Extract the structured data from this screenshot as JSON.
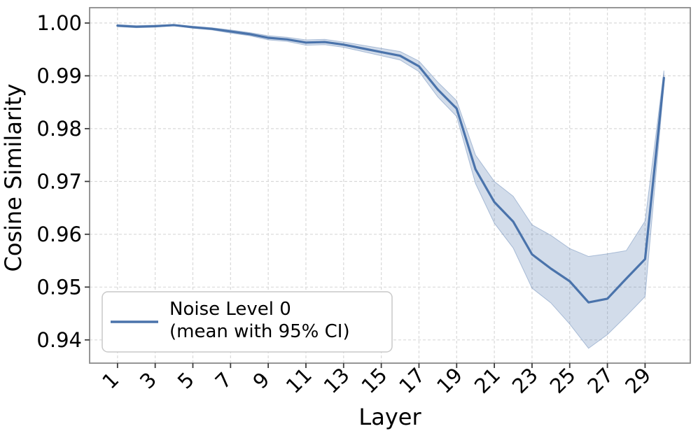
{
  "figure": {
    "background": "#ffffff"
  },
  "chart_data": {
    "type": "line",
    "title": "",
    "xlabel": "Layer",
    "ylabel": "Cosine Similarity",
    "x": [
      1,
      2,
      3,
      4,
      5,
      6,
      7,
      8,
      9,
      10,
      11,
      12,
      13,
      14,
      15,
      16,
      17,
      18,
      19,
      20,
      21,
      22,
      23,
      24,
      25,
      26,
      27,
      28,
      29,
      30
    ],
    "series": [
      {
        "name": "Noise Level 0 (mean with 95% CI)",
        "legend_lines": [
          "Noise Level 0",
          "(mean with 95% CI)"
        ],
        "mean": [
          0.9995,
          0.9993,
          0.9994,
          0.9996,
          0.9992,
          0.9989,
          0.9984,
          0.9979,
          0.9972,
          0.9969,
          0.9963,
          0.9964,
          0.9959,
          0.9952,
          0.9945,
          0.9938,
          0.9918,
          0.9874,
          0.9838,
          0.9723,
          0.9661,
          0.9624,
          0.9562,
          0.9535,
          0.9511,
          0.9471,
          0.9478,
          0.9516,
          0.9553,
          0.9896
        ],
        "ci_upper": [
          0.9997,
          0.9995,
          0.9996,
          0.9997,
          0.9994,
          0.9991,
          0.9987,
          0.9982,
          0.9976,
          0.9973,
          0.9968,
          0.9969,
          0.9964,
          0.9958,
          0.9952,
          0.9946,
          0.9928,
          0.9888,
          0.9853,
          0.975,
          0.97,
          0.9672,
          0.9618,
          0.9598,
          0.9573,
          0.9558,
          0.9563,
          0.9569,
          0.9625,
          0.991
        ],
        "ci_lower": [
          0.9993,
          0.9991,
          0.9992,
          0.9995,
          0.999,
          0.9987,
          0.9981,
          0.9976,
          0.9968,
          0.9965,
          0.9958,
          0.9959,
          0.9954,
          0.9946,
          0.9938,
          0.993,
          0.9908,
          0.986,
          0.9823,
          0.9696,
          0.9621,
          0.9574,
          0.9498,
          0.947,
          0.943,
          0.9384,
          0.941,
          0.9445,
          0.9482,
          0.9882
        ],
        "color": "#4a73ab",
        "band_color": "#4a73ab",
        "band_opacity": 0.25
      }
    ],
    "xticks": [
      1,
      3,
      5,
      7,
      9,
      11,
      13,
      15,
      17,
      19,
      21,
      23,
      25,
      27,
      29
    ],
    "xtick_labels": [
      "1",
      "3",
      "5",
      "7",
      "9",
      "11",
      "13",
      "15",
      "17",
      "19",
      "21",
      "23",
      "25",
      "27",
      "29"
    ],
    "yticks": [
      0.94,
      0.95,
      0.96,
      0.97,
      0.98,
      0.99,
      1.0
    ],
    "ytick_labels": [
      "0.94",
      "0.95",
      "0.96",
      "0.97",
      "0.98",
      "0.99",
      "1.00"
    ],
    "xlim": [
      -0.48,
      31.4
    ],
    "ylim": [
      0.9356,
      1.0029
    ],
    "grid": true,
    "x_tick_rotation": 45,
    "legend_position": "lower left"
  },
  "style": {
    "grid_color": "#d9d9d9",
    "spine_color": "#8a8a8a",
    "tick_color": "#3c3c3c",
    "text_color": "#000000",
    "legend_border_color": "#c9c9c9",
    "legend_bg_color": "#ffffff"
  }
}
